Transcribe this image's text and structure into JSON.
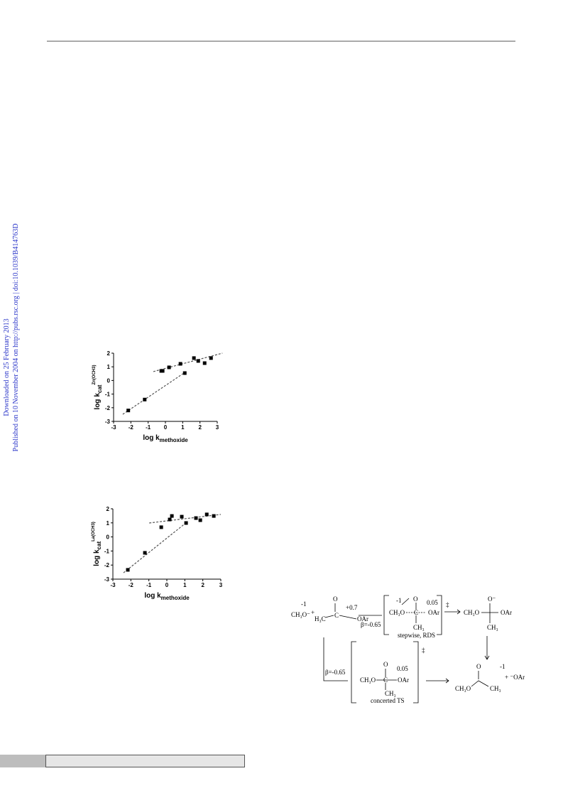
{
  "sidebar": {
    "downloaded": "Downloaded on 25 February 2013",
    "published": "Published on 10 November 2004 on http://pubs.rsc.org | doi:10.1039/B414763D"
  },
  "chart_data": [
    {
      "type": "scatter",
      "x_label": {
        "main": "log k",
        "sub": "methoxide"
      },
      "y_label": {
        "main": "log k",
        "sub": "cat",
        "sup": "Zn(OCH3)"
      },
      "xlim": [
        -3,
        3
      ],
      "xticks": [
        -3,
        -2,
        -1,
        0,
        1,
        2,
        3
      ],
      "ylim": [
        -3,
        2
      ],
      "yticks": [
        -3,
        -2,
        -1,
        0,
        1,
        2
      ],
      "color": "#000000",
      "x": [
        -2.15,
        -1.2,
        -0.24,
        -0.16,
        0.21,
        0.87,
        1.12,
        1.65,
        1.9,
        2.27,
        2.64
      ],
      "values": [
        -2.2,
        -1.4,
        0.7,
        0.7,
        0.96,
        1.22,
        0.54,
        1.64,
        1.43,
        1.27,
        1.64
      ],
      "fits": [
        {
          "x": [
            -2.47,
            1.2
          ],
          "values": [
            -2.48,
            0.65
          ]
        },
        {
          "x": [
            -0.7,
            3.3
          ],
          "values": [
            0.65,
            2.0
          ]
        }
      ]
    },
    {
      "type": "scatter",
      "x_label": {
        "main": "log k",
        "sub": "methoxide"
      },
      "y_label": {
        "main": "log k",
        "sub": "cat",
        "sup": "La(OCH3)"
      },
      "xlim": [
        -3,
        3
      ],
      "xticks": [
        -3,
        -2,
        -1,
        0,
        1,
        2,
        3
      ],
      "ylim": [
        -3,
        2
      ],
      "yticks": [
        -3,
        -2,
        -1,
        0,
        1,
        2
      ],
      "color": "#000000",
      "x": [
        -2.17,
        -1.22,
        -0.31,
        0.16,
        0.28,
        0.83,
        1.07,
        1.62,
        1.86,
        2.22,
        2.61
      ],
      "values": [
        -2.34,
        -1.13,
        0.69,
        1.24,
        1.49,
        1.44,
        0.99,
        1.34,
        1.19,
        1.6,
        1.49
      ],
      "fits": [
        {
          "x": [
            -2.41,
            1.15
          ],
          "values": [
            -2.55,
            1.09
          ]
        },
        {
          "x": [
            -0.98,
            3.0
          ],
          "values": [
            0.99,
            1.6
          ]
        }
      ]
    }
  ],
  "scheme": {
    "labels": [
      "-1",
      "CH₃O⁻",
      "+",
      "O",
      "+0.7",
      "H₃C",
      "C",
      "OAr",
      "β=-0.65",
      "-1",
      "O",
      "0.05",
      "CH₃O",
      "C",
      "OAr",
      "CH₃",
      "stepwise, RDS",
      "‡",
      "O⁻",
      "CH₃O",
      "OAr",
      "CH₃",
      "β=-0.65",
      "O",
      "0.05",
      "CH₃O",
      "C",
      "OAr",
      "CH₃",
      "concerted TS",
      "‡",
      "O",
      "CH₃O",
      "CH₃",
      "-1",
      "+ ⁻OAr"
    ]
  }
}
